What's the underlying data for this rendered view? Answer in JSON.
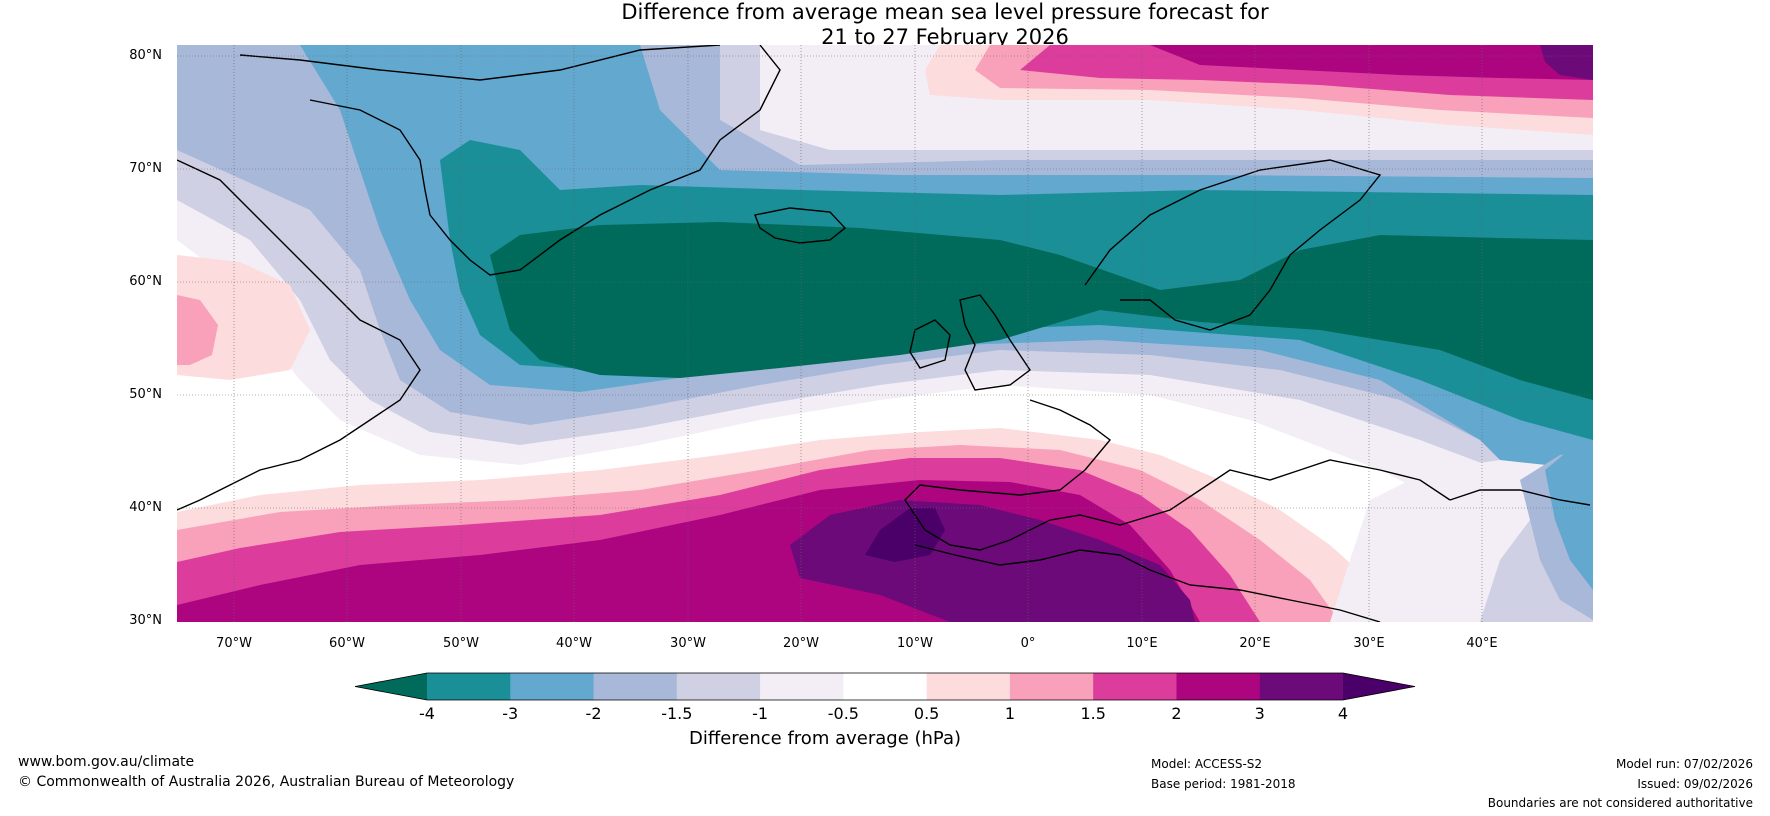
{
  "title": {
    "line1": "Difference from average mean sea level pressure forecast for",
    "line2": "21 to 27 February 2026"
  },
  "map": {
    "latitude_labels": [
      "80°N",
      "70°N",
      "60°N",
      "50°N",
      "40°N",
      "30°N"
    ],
    "longitude_labels": [
      "70°W",
      "60°W",
      "50°W",
      "40°W",
      "30°W",
      "20°W",
      "10°W",
      "0°",
      "10°E",
      "20°E",
      "30°E",
      "40°E"
    ]
  },
  "colorbar": {
    "ticks": [
      "-4",
      "-3",
      "-2",
      "-1.5",
      "-1",
      "-0.5",
      "0.5",
      "1",
      "1.5",
      "2",
      "3",
      "4"
    ],
    "colors": [
      "#006b5a",
      "#1a8f97",
      "#63a8cf",
      "#a8b8d8",
      "#d0d0e4",
      "#f3eef5",
      "#ffffff",
      "#fddcdd",
      "#f9a0ba",
      "#dc3c9c",
      "#ad0580",
      "#6d0a79"
    ],
    "extend_low_color": "#006b5a",
    "extend_high_color": "#4a0068",
    "label": "Difference from average (hPa)"
  },
  "footer": {
    "website": "www.bom.gov.au/climate",
    "copyright": "© Commonwealth of Australia 2026, Australian Bureau of Meteorology",
    "model": "Model: ACCESS-S2",
    "base_period": "Base period: 1981-2018",
    "model_run": "Model run: 07/02/2026",
    "issued": "Issued: 09/02/2026",
    "disclaimer": "Boundaries are not considered authoritative"
  }
}
